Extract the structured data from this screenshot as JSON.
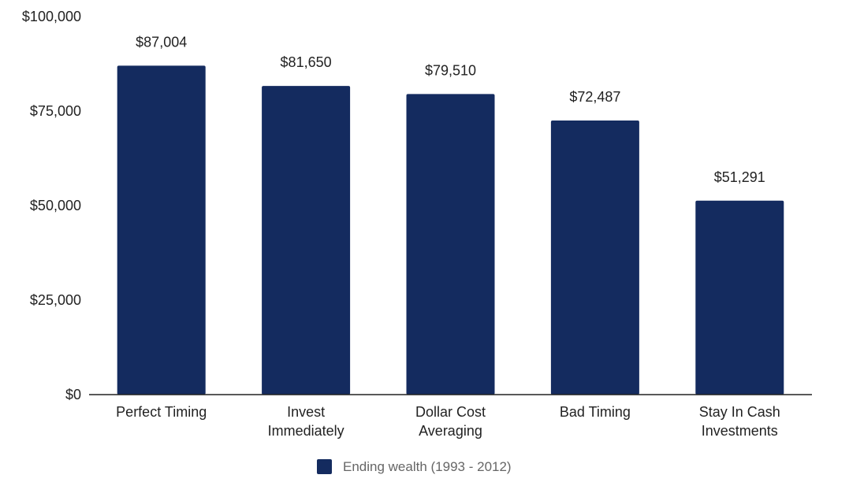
{
  "chart_data": {
    "type": "bar",
    "categories": [
      [
        "Perfect Timing"
      ],
      [
        "Invest",
        "Immediately"
      ],
      [
        "Dollar Cost",
        "Averaging"
      ],
      [
        "Bad Timing"
      ],
      [
        "Stay In Cash",
        "Investments"
      ]
    ],
    "series": [
      {
        "name": "Ending wealth (1993 - 2012)",
        "values": [
          87004,
          81650,
          79510,
          72487,
          51291
        ],
        "data_labels": [
          "$87,004",
          "$81,650",
          "$79,510",
          "$72,487",
          "$51,291"
        ],
        "color": "#142b5f"
      }
    ],
    "yticks": [
      0,
      25000,
      50000,
      75000,
      100000
    ],
    "ytick_labels": [
      "$0",
      "$25,000",
      "$50,000",
      "$75,000",
      "$100,000"
    ],
    "ylim": [
      0,
      100000
    ],
    "grid": false,
    "legend_position": "bottom",
    "title": "",
    "xlabel": "",
    "ylabel": ""
  }
}
